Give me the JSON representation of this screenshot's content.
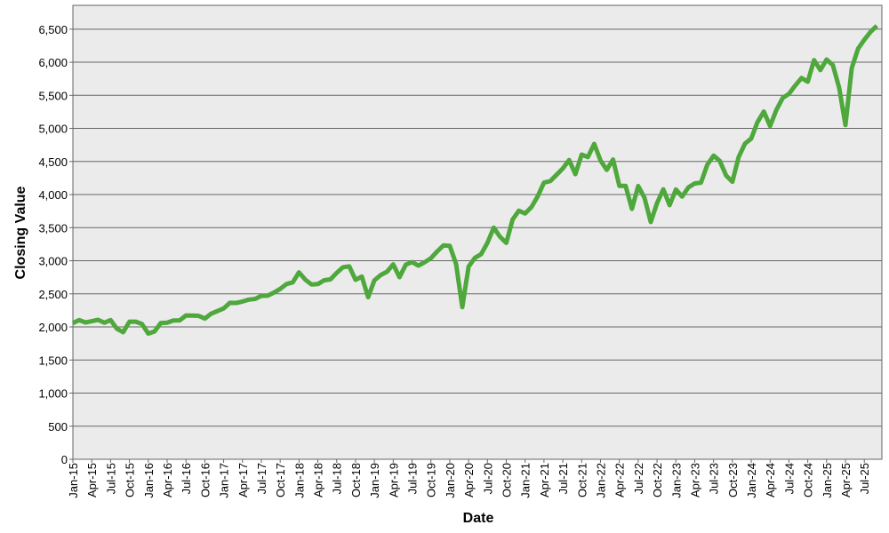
{
  "chart_data": {
    "type": "line",
    "x_label": "Date",
    "y_label": "Closing Value",
    "color": "#4ea83c",
    "grid": true,
    "ylim": [
      0,
      6860
    ],
    "yticks": [
      0,
      500,
      {
        "value": 1000,
        "label": "1,000"
      },
      {
        "value": 1500,
        "label": "1,500"
      },
      {
        "value": 2000,
        "label": "2,000"
      },
      {
        "value": 2500,
        "label": "2,500"
      },
      {
        "value": 3000,
        "label": "3,000"
      },
      {
        "value": 3500,
        "label": "3,500"
      },
      {
        "value": 4000,
        "label": "4,000"
      },
      {
        "value": 4500,
        "label": "4,500"
      },
      {
        "value": 5000,
        "label": "5,000"
      },
      {
        "value": 5500,
        "label": "5,500"
      },
      {
        "value": 6000,
        "label": "6,000"
      },
      {
        "value": 6500,
        "label": "6,500"
      }
    ],
    "categories": [
      "Jan-15",
      null,
      null,
      "Apr-15",
      null,
      null,
      "Jul-15",
      null,
      null,
      "Oct-15",
      null,
      null,
      "Jan-16",
      null,
      null,
      "Apr-16",
      null,
      null,
      "Jul-16",
      null,
      null,
      "Oct-16",
      null,
      null,
      "Jan-17",
      null,
      null,
      "Apr-17",
      null,
      null,
      "Jul-17",
      null,
      null,
      "Oct-17",
      null,
      null,
      "Jan-18",
      null,
      null,
      "Apr-18",
      null,
      null,
      "Jul-18",
      null,
      null,
      "Oct-18",
      null,
      null,
      "Jan-19",
      null,
      null,
      "Apr-19",
      null,
      null,
      "Jul-19",
      null,
      null,
      "Oct-19",
      null,
      null,
      "Jan-20",
      null,
      null,
      "Apr-20",
      null,
      null,
      "Jul-20",
      null,
      null,
      "Oct-20",
      null,
      null,
      "Jan-21",
      null,
      null,
      "Apr-21",
      null,
      null,
      "Jul-21",
      null,
      null,
      "Oct-21",
      null,
      null,
      "Jan-22",
      null,
      null,
      "Apr-22",
      null,
      null,
      "Jul-22",
      null,
      null,
      "Oct-22",
      null,
      null,
      "Jan-23",
      null,
      null,
      "Apr-23",
      null,
      null,
      "Jul-23",
      null,
      null,
      "Oct-23",
      null,
      null,
      "Jan-24",
      null,
      null,
      "Apr-24",
      null,
      null,
      "Jul-24",
      null,
      null,
      "Oct-24",
      null,
      null,
      "Jan-25",
      null,
      null,
      "Apr-25",
      null,
      null,
      "Jul-25",
      null,
      null
    ],
    "values": [
      2058,
      2104,
      2068,
      2086,
      2107,
      2063,
      2104,
      1972,
      1920,
      2079,
      2080,
      2044,
      1900,
      1932,
      2060,
      2065,
      2097,
      2099,
      2174,
      2171,
      2168,
      2126,
      2199,
      2239,
      2279,
      2364,
      2363,
      2384,
      2412,
      2423,
      2470,
      2472,
      2519,
      2575,
      2648,
      2674,
      2824,
      2714,
      2641,
      2648,
      2705,
      2718,
      2816,
      2902,
      2914,
      2712,
      2760,
      2450,
      2704,
      2784,
      2834,
      2946,
      2752,
      2942,
      2980,
      2926,
      2977,
      3038,
      3141,
      3231,
      3226,
      2954,
      2300,
      2912,
      3044,
      3100,
      3271,
      3500,
      3363,
      3270,
      3622,
      3756,
      3714,
      3811,
      3973,
      4181,
      4204,
      4298,
      4395,
      4523,
      4308,
      4605,
      4567,
      4766,
      4516,
      4374,
      4530,
      4132,
      4132,
      3785,
      4130,
      3955,
      3586,
      3872,
      4080,
      3840,
      4077,
      3970,
      4109,
      4169,
      4180,
      4450,
      4589,
      4508,
      4288,
      4194,
      4568,
      4770,
      4846,
      5096,
      5254,
      5036,
      5278,
      5460,
      5522,
      5648,
      5762,
      5705,
      6032,
      5882,
      6041,
      5955,
      5612,
      5050,
      5912,
      6205,
      6339,
      6460,
      6550
    ]
  }
}
